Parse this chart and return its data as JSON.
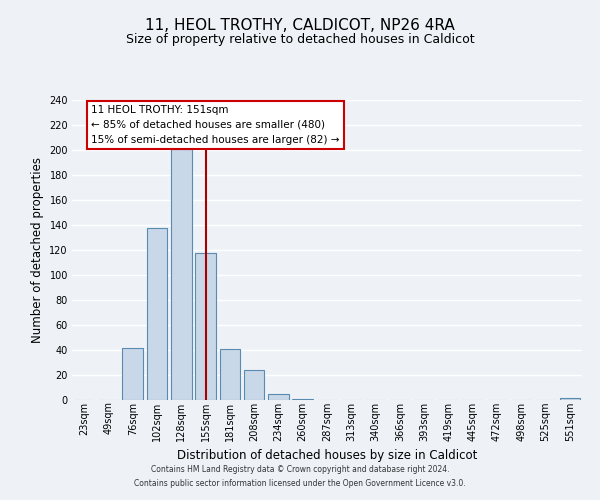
{
  "title": "11, HEOL TROTHY, CALDICOT, NP26 4RA",
  "subtitle": "Size of property relative to detached houses in Caldicot",
  "xlabel": "Distribution of detached houses by size in Caldicot",
  "ylabel": "Number of detached properties",
  "categories": [
    "23sqm",
    "49sqm",
    "76sqm",
    "102sqm",
    "128sqm",
    "155sqm",
    "181sqm",
    "208sqm",
    "234sqm",
    "260sqm",
    "287sqm",
    "313sqm",
    "340sqm",
    "366sqm",
    "393sqm",
    "419sqm",
    "445sqm",
    "472sqm",
    "498sqm",
    "525sqm",
    "551sqm"
  ],
  "values": [
    0,
    0,
    42,
    138,
    201,
    118,
    41,
    24,
    5,
    1,
    0,
    0,
    0,
    0,
    0,
    0,
    0,
    0,
    0,
    0,
    2
  ],
  "bar_color": "#c8d8e8",
  "bar_edge_color": "#5a8ab0",
  "red_line_index": 5,
  "red_line_color": "#aa0000",
  "ylim": [
    0,
    240
  ],
  "yticks": [
    0,
    20,
    40,
    60,
    80,
    100,
    120,
    140,
    160,
    180,
    200,
    220,
    240
  ],
  "annotation_title": "11 HEOL TROTHY: 151sqm",
  "annotation_line1": "← 85% of detached houses are smaller (480)",
  "annotation_line2": "15% of semi-detached houses are larger (82) →",
  "annotation_box_facecolor": "#ffffff",
  "annotation_box_edgecolor": "#cc0000",
  "background_color": "#eef2f7",
  "grid_color": "#ffffff",
  "footer_line1": "Contains HM Land Registry data © Crown copyright and database right 2024.",
  "footer_line2": "Contains public sector information licensed under the Open Government Licence v3.0.",
  "title_fontsize": 11,
  "subtitle_fontsize": 9,
  "xlabel_fontsize": 8.5,
  "ylabel_fontsize": 8.5,
  "tick_fontsize": 7,
  "ann_fontsize": 7.5,
  "footer_fontsize": 5.5
}
